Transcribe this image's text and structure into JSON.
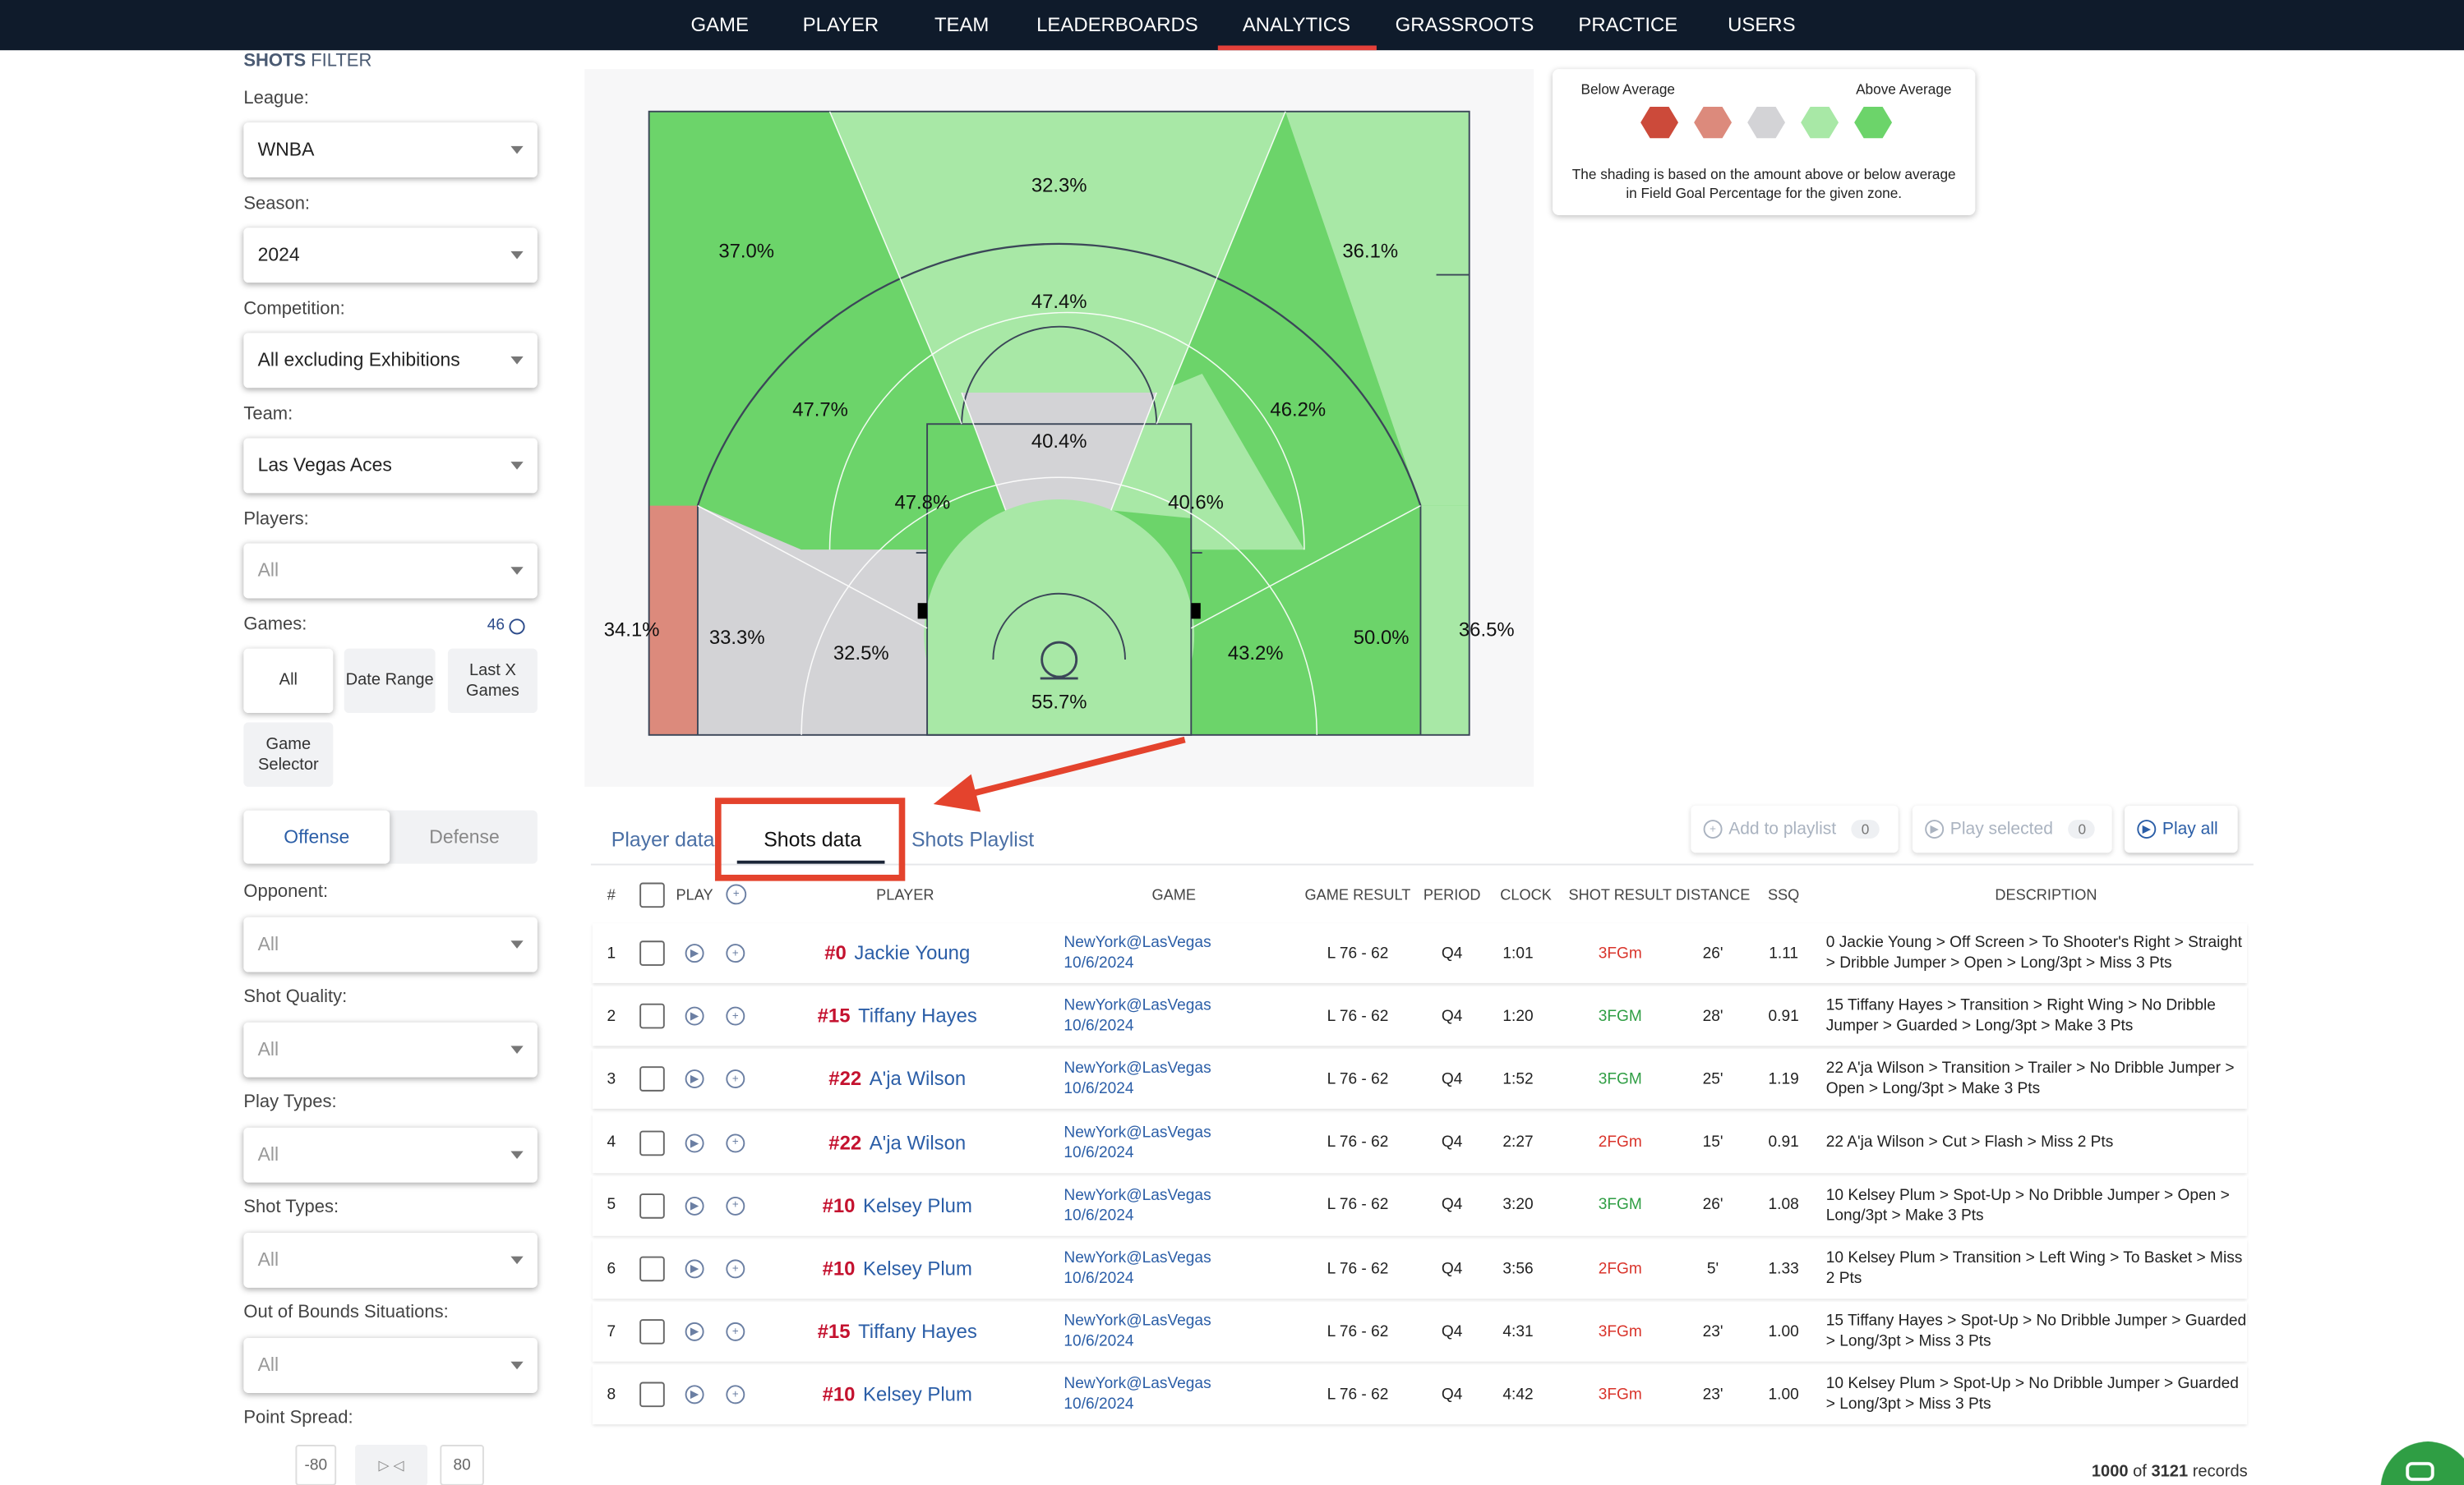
{
  "nav": {
    "items": [
      "GAME",
      "PLAYER",
      "TEAM",
      "LEADERBOARDS",
      "ANALYTICS",
      "GRASSROOTS",
      "PRACTICE",
      "USERS"
    ],
    "active": "ANALYTICS"
  },
  "filter": {
    "title_bold": "SHOTS",
    "title_rest": " FILTER",
    "league": {
      "label": "League:",
      "value": "WNBA"
    },
    "season": {
      "label": "Season:",
      "value": "2024"
    },
    "competition": {
      "label": "Competition:",
      "value": "All excluding Exhibitions"
    },
    "team": {
      "label": "Team:",
      "value": "Las Vegas Aces"
    },
    "players": {
      "label": "Players:",
      "value": "All"
    },
    "games": {
      "label": "Games:",
      "count": "46",
      "buttons": [
        "All",
        "Date Range",
        "Last X Games",
        "Game Selector"
      ]
    },
    "side": {
      "offense": "Offense",
      "defense": "Defense"
    },
    "opponent": {
      "label": "Opponent:",
      "value": "All"
    },
    "shot_quality": {
      "label": "Shot Quality:",
      "value": "All"
    },
    "play_types": {
      "label": "Play Types:",
      "value": "All"
    },
    "shot_types": {
      "label": "Shot Types:",
      "value": "All"
    },
    "oob": {
      "label": "Out of Bounds Situations:",
      "value": "All"
    },
    "point_spread": {
      "label": "Point Spread:",
      "min": "-80",
      "max": "80"
    }
  },
  "court": {
    "zones": {
      "left_corner3": "34.1%",
      "left_base_mid": "33.3%",
      "left_short_mid": "32.5%",
      "paint": "55.7%",
      "right_short_mid": "43.2%",
      "right_base_mid": "50.0%",
      "right_corner3": "36.5%",
      "left_elbow": "47.8%",
      "top_key": "40.4%",
      "right_elbow": "40.6%",
      "left_wing_long": "47.7%",
      "top_long": "47.4%",
      "right_wing_long": "46.2%",
      "left_wing3": "37.0%",
      "top3": "32.3%",
      "right_wing3": "36.1%"
    },
    "colors": {
      "dark_green": "#6cd46a",
      "light_green": "#a8e8a6",
      "grey": "#d3d3d6",
      "salmon": "#dc8a7c",
      "dark_red": "#cc4a3a"
    }
  },
  "legend": {
    "below": "Below Average",
    "above": "Above Average",
    "note": "The shading is based on the amount above or below average in Field Goal Percentage for the given zone."
  },
  "tabs": {
    "player_data": "Player data",
    "shots_data": "Shots data",
    "shots_playlist": "Shots Playlist",
    "active": "Shots data"
  },
  "toolbar": {
    "add_to_playlist": "Add to playlist",
    "add_count": "0",
    "play_selected": "Play selected",
    "selected_count": "0",
    "play_all": "Play all"
  },
  "table": {
    "headers": {
      "num": "#",
      "play": "PLAY",
      "player": "PLAYER",
      "game": "GAME",
      "result": "GAME RESULT",
      "period": "PERIOD",
      "clock": "CLOCK",
      "shot_result": "SHOT RESULT",
      "distance": "DISTANCE",
      "ssq": "SSQ",
      "description": "DESCRIPTION"
    },
    "rows": [
      {
        "n": "1",
        "num": "#0",
        "name": "Jackie Young",
        "game": "NewYork@LasVegas",
        "date": "10/6/2024",
        "result": "L 76 - 62",
        "period": "Q4",
        "clock": "1:01",
        "shot": "3FGm",
        "dist": "26'",
        "ssq": "1.11",
        "desc": "0 Jackie Young > Off Screen > To Shooter's Right > Straight > Dribble Jumper > Open > Long/3pt > Miss 3 Pts"
      },
      {
        "n": "2",
        "num": "#15",
        "name": "Tiffany Hayes",
        "game": "NewYork@LasVegas",
        "date": "10/6/2024",
        "result": "L 76 - 62",
        "period": "Q4",
        "clock": "1:20",
        "shot": "3FGM",
        "dist": "28'",
        "ssq": "0.91",
        "desc": "15 Tiffany Hayes > Transition > Right Wing > No Dribble Jumper > Guarded > Long/3pt > Make 3 Pts"
      },
      {
        "n": "3",
        "num": "#22",
        "name": "A'ja Wilson",
        "game": "NewYork@LasVegas",
        "date": "10/6/2024",
        "result": "L 76 - 62",
        "period": "Q4",
        "clock": "1:52",
        "shot": "3FGM",
        "dist": "25'",
        "ssq": "1.19",
        "desc": "22 A'ja Wilson > Transition > Trailer > No Dribble Jumper > Open > Long/3pt > Make 3 Pts"
      },
      {
        "n": "4",
        "num": "#22",
        "name": "A'ja Wilson",
        "game": "NewYork@LasVegas",
        "date": "10/6/2024",
        "result": "L 76 - 62",
        "period": "Q4",
        "clock": "2:27",
        "shot": "2FGm",
        "dist": "15'",
        "ssq": "0.91",
        "desc": "22 A'ja Wilson > Cut > Flash > Miss 2 Pts"
      },
      {
        "n": "5",
        "num": "#10",
        "name": "Kelsey Plum",
        "game": "NewYork@LasVegas",
        "date": "10/6/2024",
        "result": "L 76 - 62",
        "period": "Q4",
        "clock": "3:20",
        "shot": "3FGM",
        "dist": "26'",
        "ssq": "1.08",
        "desc": "10 Kelsey Plum > Spot-Up > No Dribble Jumper > Open > Long/3pt > Make 3 Pts"
      },
      {
        "n": "6",
        "num": "#10",
        "name": "Kelsey Plum",
        "game": "NewYork@LasVegas",
        "date": "10/6/2024",
        "result": "L 76 - 62",
        "period": "Q4",
        "clock": "3:56",
        "shot": "2FGm",
        "dist": "5'",
        "ssq": "1.33",
        "desc": "10 Kelsey Plum > Transition > Left Wing > To Basket > Miss 2 Pts"
      },
      {
        "n": "7",
        "num": "#15",
        "name": "Tiffany Hayes",
        "game": "NewYork@LasVegas",
        "date": "10/6/2024",
        "result": "L 76 - 62",
        "period": "Q4",
        "clock": "4:31",
        "shot": "3FGm",
        "dist": "23'",
        "ssq": "1.00",
        "desc": "15 Tiffany Hayes > Spot-Up > No Dribble Jumper > Guarded > Long/3pt > Miss 3 Pts"
      },
      {
        "n": "8",
        "num": "#10",
        "name": "Kelsey Plum",
        "game": "NewYork@LasVegas",
        "date": "10/6/2024",
        "result": "L 76 - 62",
        "period": "Q4",
        "clock": "4:42",
        "shot": "3FGm",
        "dist": "23'",
        "ssq": "1.00",
        "desc": "10 Kelsey Plum > Spot-Up > No Dribble Jumper > Guarded > Long/3pt > Miss 3 Pts"
      }
    ]
  },
  "footer": {
    "shown": "1000",
    "of": "of",
    "total": "3121",
    "records": "records"
  },
  "annotation": {
    "color": "#e4432d"
  }
}
